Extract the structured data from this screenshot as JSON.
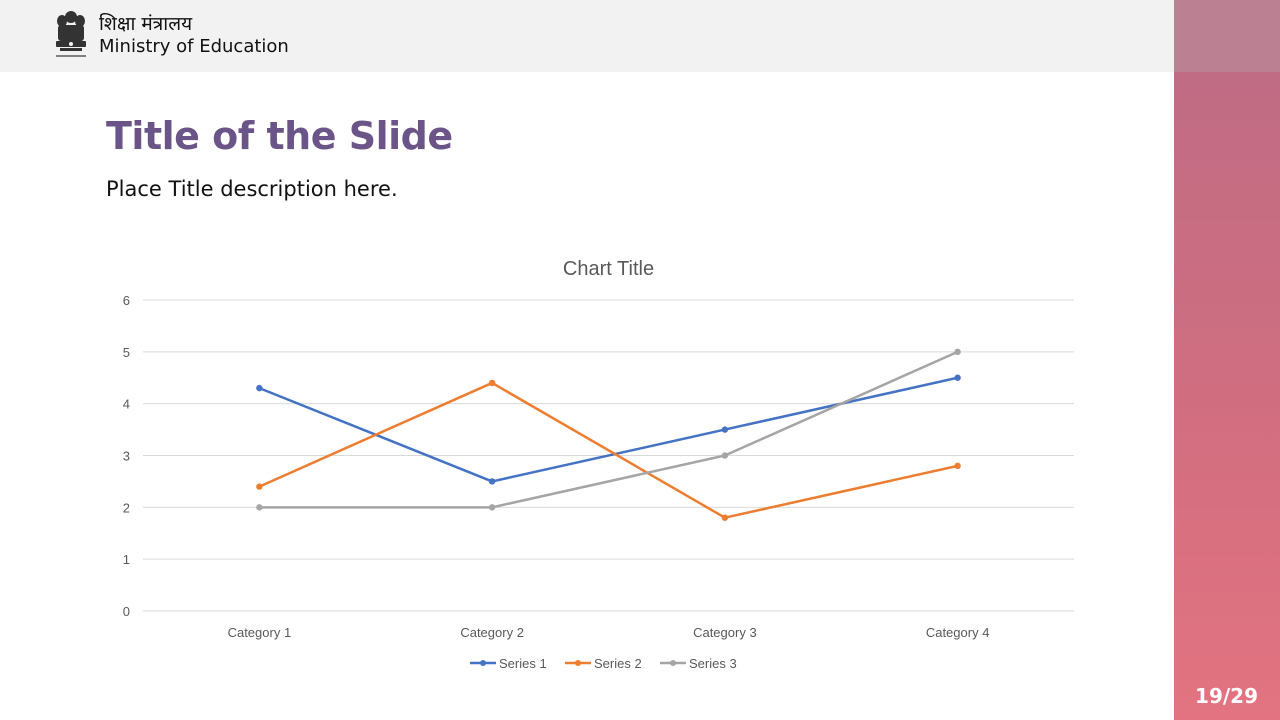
{
  "header": {
    "org_hindi": "शिक्षा मंत्रालय",
    "org_english": "Ministry of Education",
    "emblem_icon": "national-emblem-icon"
  },
  "slide": {
    "title": "Title of the Slide",
    "description": "Place Title description here.",
    "page_number": "19/29"
  },
  "colors": {
    "title": "#6b5588",
    "header_bg": "#f2f2f2",
    "sidebar_top": "#bc8093",
    "sidebar_gradient_start": "#c06c84",
    "sidebar_gradient_end": "#e37380"
  },
  "chart_data": {
    "type": "line",
    "title": "Chart Title",
    "xlabel": "",
    "ylabel": "",
    "categories": [
      "Category 1",
      "Category 2",
      "Category 3",
      "Category 4"
    ],
    "ylim": [
      0,
      6
    ],
    "yticks": [
      0,
      1,
      2,
      3,
      4,
      5,
      6
    ],
    "grid": true,
    "legend": "bottom",
    "series": [
      {
        "name": "Series 1",
        "values": [
          4.3,
          2.5,
          3.5,
          4.5
        ],
        "color": "#4472c4"
      },
      {
        "name": "Series 2",
        "values": [
          2.4,
          4.4,
          1.8,
          2.8
        ],
        "color": "#ed7d31"
      },
      {
        "name": "Series 3",
        "values": [
          2,
          2,
          3,
          5
        ],
        "color": "#a5a5a5"
      }
    ]
  }
}
